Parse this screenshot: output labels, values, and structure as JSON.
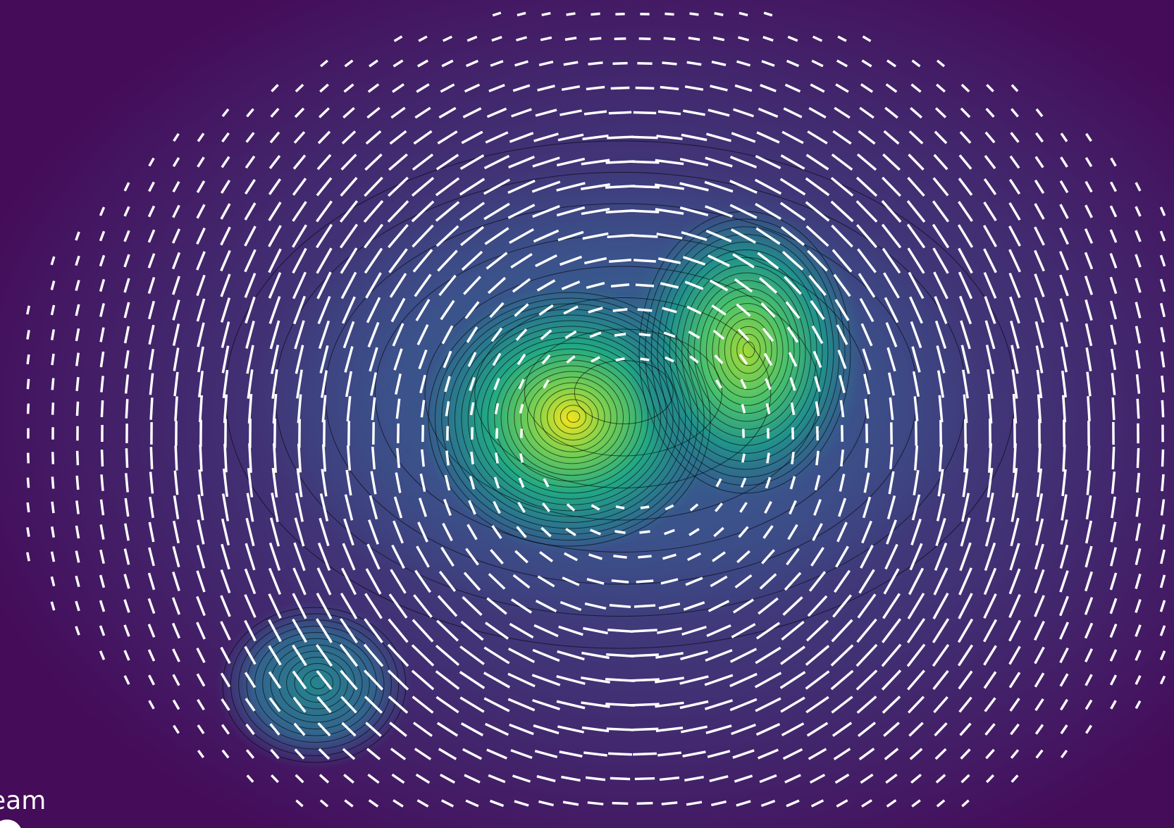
{
  "caption": "eam"
}
